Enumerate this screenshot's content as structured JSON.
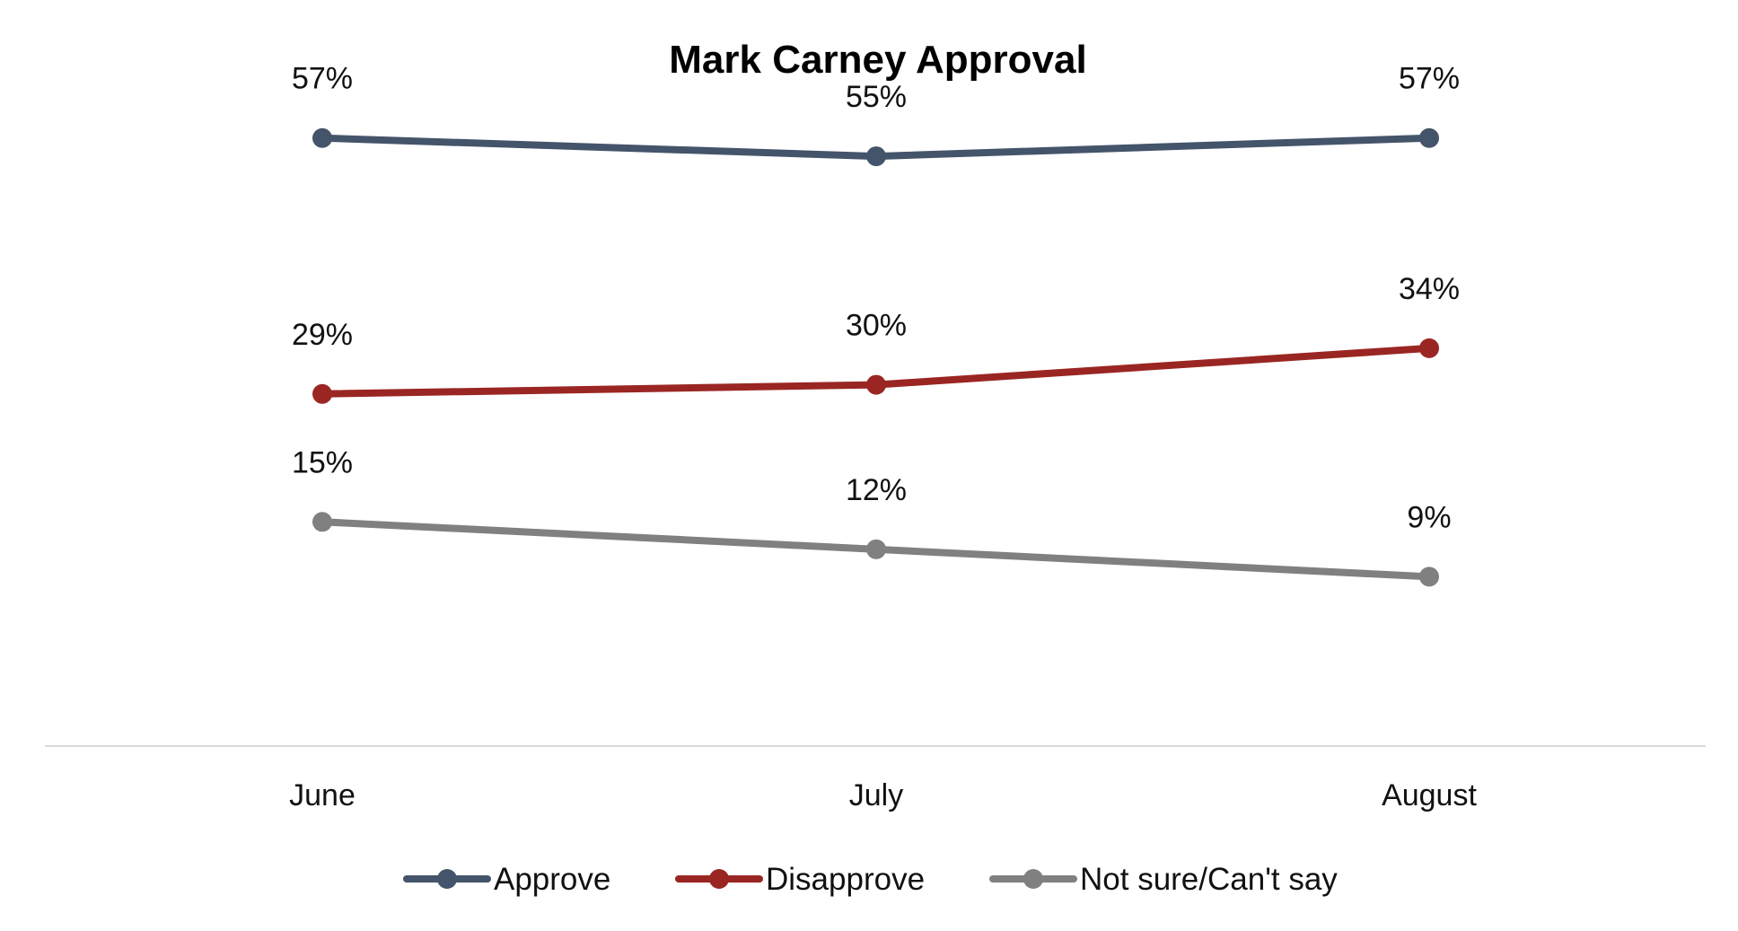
{
  "chart_data": {
    "type": "line",
    "title": "Mark Carney Approval",
    "xlabel": "",
    "ylabel": "",
    "categories": [
      "June",
      "July",
      "August"
    ],
    "ylim": [
      0,
      70
    ],
    "grid": false,
    "legend_position": "bottom",
    "series": [
      {
        "name": "Approve",
        "color": "#44546A",
        "values": [
          57,
          55,
          57
        ],
        "labels": [
          "57%",
          "55%",
          "57%"
        ]
      },
      {
        "name": "Disapprove",
        "color": "#9A2623",
        "values": [
          29,
          30,
          34
        ],
        "labels": [
          "29%",
          "30%",
          "34%"
        ]
      },
      {
        "name": "Not sure/Can't say",
        "color": "#808080",
        "values": [
          15,
          12,
          9
        ],
        "labels": [
          "15%",
          "12%",
          "9%"
        ]
      }
    ]
  }
}
